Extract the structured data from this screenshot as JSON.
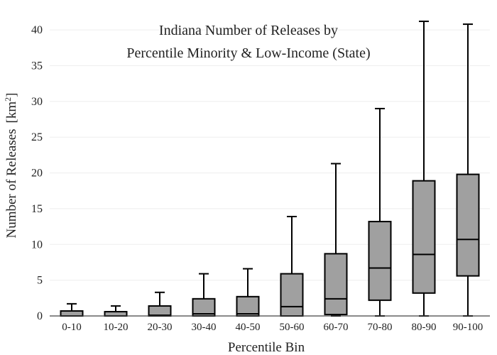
{
  "chart_data": {
    "type": "box",
    "title_lines": [
      "Indiana Number of Releases by",
      "Percentile Minority & Low-Income (State)"
    ],
    "xlabel": "Percentile Bin",
    "ylabel": "Number of Releases",
    "ylabel_unit_prefix": "[km",
    "ylabel_unit_sup": "2",
    "ylabel_unit_suffix": "]",
    "ylim": [
      0,
      42
    ],
    "yticks": [
      0,
      5,
      10,
      15,
      20,
      25,
      30,
      35,
      40
    ],
    "grid": true,
    "categories": [
      "0-10",
      "10-20",
      "20-30",
      "30-40",
      "40-50",
      "50-60",
      "60-70",
      "70-80",
      "80-90",
      "90-100"
    ],
    "boxes": [
      {
        "category": "0-10",
        "whisker_low": 0,
        "q1": 0,
        "median": 0,
        "q3": 0.7,
        "whisker_high": 1.7
      },
      {
        "category": "10-20",
        "whisker_low": 0,
        "q1": 0,
        "median": 0,
        "q3": 0.6,
        "whisker_high": 1.4
      },
      {
        "category": "20-30",
        "whisker_low": 0,
        "q1": 0,
        "median": 0.1,
        "q3": 1.4,
        "whisker_high": 3.3
      },
      {
        "category": "30-40",
        "whisker_low": 0,
        "q1": 0,
        "median": 0.3,
        "q3": 2.4,
        "whisker_high": 5.9
      },
      {
        "category": "40-50",
        "whisker_low": 0,
        "q1": 0,
        "median": 0.3,
        "q3": 2.7,
        "whisker_high": 6.6
      },
      {
        "category": "50-60",
        "whisker_low": 0,
        "q1": 0,
        "median": 1.3,
        "q3": 5.9,
        "whisker_high": 13.9
      },
      {
        "category": "60-70",
        "whisker_low": 0,
        "q1": 0.2,
        "median": 2.4,
        "q3": 8.7,
        "whisker_high": 21.3
      },
      {
        "category": "70-80",
        "whisker_low": 0,
        "q1": 2.2,
        "median": 6.7,
        "q3": 13.2,
        "whisker_high": 29.0
      },
      {
        "category": "80-90",
        "whisker_low": 0,
        "q1": 3.2,
        "median": 8.6,
        "q3": 18.9,
        "whisker_high": 41.2
      },
      {
        "category": "90-100",
        "whisker_low": 0,
        "q1": 5.6,
        "median": 10.7,
        "q3": 19.8,
        "whisker_high": 40.8
      }
    ],
    "colors": {
      "box_fill": "#a0a0a0",
      "box_stroke": "#000000",
      "grid": "#eeeeee",
      "axis": "#444444",
      "text": "#222222"
    }
  }
}
